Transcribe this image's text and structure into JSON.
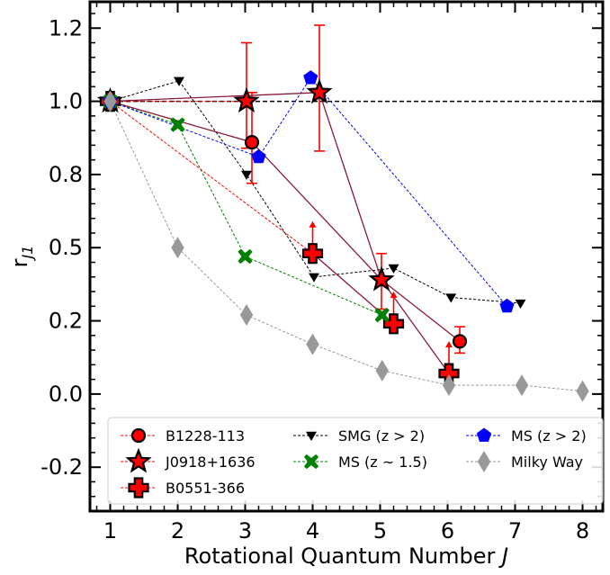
{
  "chart_data": {
    "type": "scatter",
    "xlabel": "Rotational Quantum Number",
    "xlabel_italic": "J",
    "ylabel": "r",
    "ylabel_sub": "J1",
    "xlim": [
      0.7,
      8.3
    ],
    "ylim": [
      -0.4,
      1.34
    ],
    "reference_line_y": 1.0,
    "grid": false,
    "legend_position": "bottom",
    "x_ticks": [
      {
        "value": 1,
        "label": "1"
      },
      {
        "value": 2,
        "label": "2"
      },
      {
        "value": 3,
        "label": "3"
      },
      {
        "value": 4,
        "label": "4"
      },
      {
        "value": 5,
        "label": "5"
      },
      {
        "value": 6,
        "label": "6"
      },
      {
        "value": 7,
        "label": "7"
      },
      {
        "value": 8,
        "label": "8"
      }
    ],
    "y_ticks": [
      {
        "value": -0.25,
        "label": "-0.2"
      },
      {
        "value": 0.0,
        "label": "0.0"
      },
      {
        "value": 0.25,
        "label": "0.2"
      },
      {
        "value": 0.5,
        "label": "0.5"
      },
      {
        "value": 0.75,
        "label": "0.8"
      },
      {
        "value": 1.0,
        "label": "1.0"
      },
      {
        "value": 1.25,
        "label": "1.2"
      }
    ],
    "series": [
      {
        "name": "B1228-113",
        "marker": "circle",
        "color": "#ff0000",
        "line_color": "#ff0000",
        "line_style": "dashed",
        "connect": [
          0,
          1
        ],
        "x": [
          1,
          3.1,
          6.18
        ],
        "y": [
          1.0,
          0.86,
          0.18
        ],
        "err_lo": [
          0,
          0.14,
          0.04
        ],
        "err_hi": [
          0,
          0.17,
          0.05
        ]
      },
      {
        "name": "J0918+1636",
        "marker": "star",
        "color": "#ff0000",
        "line_color": "#ff0000",
        "line_style": "dashed",
        "connect": [
          0,
          1
        ],
        "x": [
          1,
          3.02,
          4.1,
          5.02
        ],
        "y": [
          1.0,
          1.0,
          1.03,
          0.39
        ],
        "err_lo": [
          0,
          0.16,
          0.2,
          0.1
        ],
        "err_hi": [
          0,
          0.2,
          0.23,
          0.09
        ]
      },
      {
        "name": "B0551-366",
        "marker": "plus",
        "color": "#ff0000",
        "line_color": "#ff0000",
        "line_style": "dashed",
        "connect": [
          0,
          1
        ],
        "x": [
          1,
          4.0,
          5.2,
          6.02
        ],
        "y": [
          1.0,
          0.48,
          0.24,
          0.07
        ],
        "err_lo": [
          0,
          0,
          0,
          0
        ],
        "err_hi": [
          0,
          0,
          0,
          0
        ],
        "lower_limit": [
          false,
          true,
          true,
          true
        ]
      },
      {
        "name": "SMG (z > 2)",
        "marker": "triangle_down",
        "color": "#000000",
        "line_color": "#000000",
        "line_style": "dashed",
        "x": [
          1,
          2.02,
          3.02,
          4.02,
          5.2,
          6.05,
          7.08
        ],
        "y": [
          1.0,
          1.07,
          0.75,
          0.4,
          0.43,
          0.33,
          0.31
        ]
      },
      {
        "name": "MS (z ~ 1.5)",
        "marker": "x",
        "color": "#008000",
        "line_color": "#008000",
        "line_style": "dashed",
        "x": [
          1,
          2.0,
          3.0,
          5.03
        ],
        "y": [
          1.0,
          0.92,
          0.47,
          0.27
        ]
      },
      {
        "name": "MS (z > 2)",
        "marker": "pentagon",
        "color": "#0000ff",
        "line_color": "#0000ff",
        "line_style": "dashed",
        "x": [
          1,
          3.2,
          3.97,
          6.88
        ],
        "y": [
          1.0,
          0.81,
          1.08,
          0.3
        ]
      },
      {
        "name": "Milky Way",
        "marker": "diamond",
        "color": "#999999",
        "line_color": "#999999",
        "line_style": "dashed",
        "x": [
          1,
          2.0,
          3.02,
          4.0,
          5.03,
          6.02,
          7.1,
          8.0
        ],
        "y": [
          1.0,
          0.5,
          0.27,
          0.17,
          0.08,
          0.03,
          0.03,
          0.01
        ]
      }
    ],
    "solid_lines": [
      {
        "color": "#8b1a3a",
        "x": [
          1,
          3.1,
          5.02,
          6.02
        ],
        "y": [
          1.0,
          0.86,
          0.39,
          0.07
        ]
      },
      {
        "color": "#8b1a3a",
        "x": [
          1,
          4.1,
          5.02,
          6.18
        ],
        "y": [
          1.0,
          1.03,
          0.39,
          0.18
        ]
      },
      {
        "color": "#8b1a3a",
        "x": [
          4.0,
          5.2
        ],
        "y": [
          0.48,
          0.24
        ]
      }
    ],
    "legend": [
      {
        "label": "B1228-113",
        "marker": "circle",
        "color": "#ff0000",
        "line_color": "#ff0000"
      },
      {
        "label": "SMG (z > 2)",
        "marker": "triangle_down",
        "color": "#000000",
        "line_color": "#000000"
      },
      {
        "label": "MS (z > 2)",
        "marker": "pentagon",
        "color": "#0000ff",
        "line_color": "#0000ff"
      },
      {
        "label": "J0918+1636",
        "marker": "star",
        "color": "#ff0000",
        "line_color": "#ff0000"
      },
      {
        "label": "MS (z ~ 1.5)",
        "marker": "x",
        "color": "#008000",
        "line_color": "#008000"
      },
      {
        "label": "Milky Way",
        "marker": "diamond",
        "color": "#999999",
        "line_color": "#999999"
      },
      {
        "label": "B0551-366",
        "marker": "plus",
        "color": "#ff0000",
        "line_color": "#ff0000"
      }
    ]
  }
}
